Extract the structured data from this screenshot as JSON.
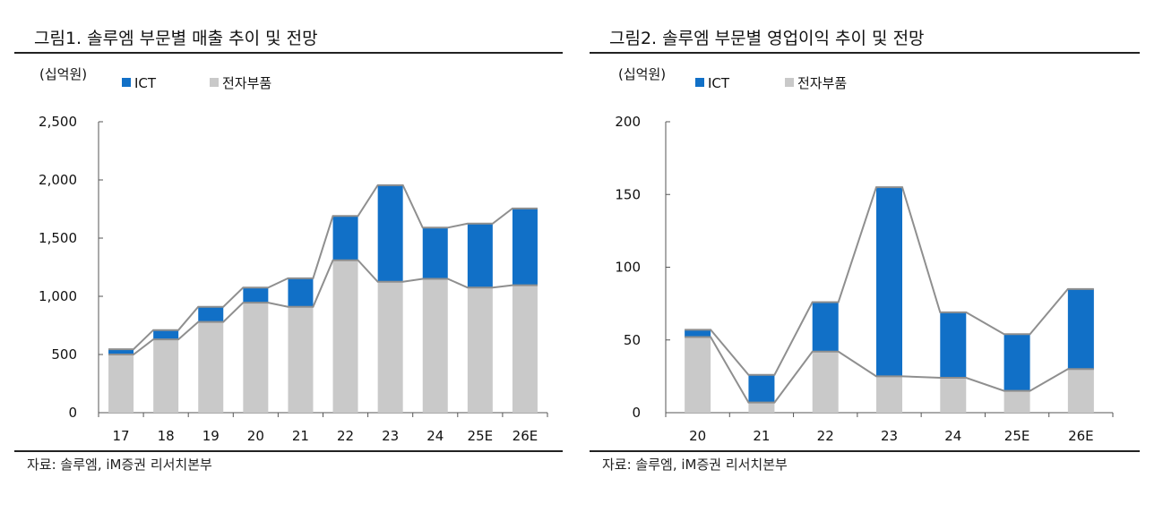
{
  "source_text": "자료: 솔루엠, iM증권 리서치본부",
  "colors": {
    "ict": "#1170c7",
    "components": "#c9c9c9",
    "total_line": "#8f8f8f",
    "component_line": "#8f8f8f"
  },
  "chart_data": [
    {
      "type": "bar",
      "stacked": true,
      "title": "그림1. 솔루엠 부문별 매출 추이 및 전망",
      "unit_label": "(십억원)",
      "categories": [
        "17",
        "18",
        "19",
        "20",
        "21",
        "22",
        "23",
        "24",
        "25E",
        "26E"
      ],
      "series": [
        {
          "name": "ICT",
          "values": [
            45,
            80,
            130,
            130,
            245,
            380,
            830,
            440,
            550,
            660
          ]
        },
        {
          "name": "전자부품",
          "values": [
            500,
            630,
            780,
            945,
            910,
            1310,
            1125,
            1150,
            1075,
            1095
          ]
        }
      ],
      "ylim": [
        0,
        2500
      ],
      "yticks": [
        0,
        500,
        1000,
        1500,
        2000,
        2500
      ],
      "ytick_labels": [
        "0",
        "500",
        "1,000",
        "1,500",
        "2,000",
        "2,500"
      ],
      "legend_position": "top"
    },
    {
      "type": "bar",
      "stacked": true,
      "title": "그림2. 솔루엠 부문별 영업이익 추이 및 전망",
      "unit_label": "(십억원)",
      "categories": [
        "20",
        "21",
        "22",
        "23",
        "24",
        "25E",
        "26E"
      ],
      "series": [
        {
          "name": "ICT",
          "values": [
            5,
            19,
            34,
            130,
            45,
            39,
            55
          ]
        },
        {
          "name": "전자부품",
          "values": [
            52,
            7,
            42,
            25,
            24,
            15,
            30
          ]
        }
      ],
      "ylim": [
        0,
        200
      ],
      "yticks": [
        0,
        50,
        100,
        150,
        200
      ],
      "ytick_labels": [
        "0",
        "50",
        "100",
        "150",
        "200"
      ],
      "legend_position": "top"
    }
  ]
}
